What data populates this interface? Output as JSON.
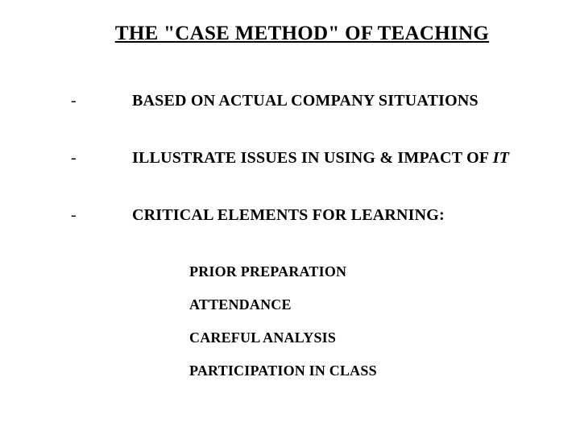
{
  "title": "THE \"CASE METHOD\" OF TEACHING",
  "bullets": [
    {
      "dash": "-",
      "text": "BASED ON ACTUAL COMPANY SITUATIONS"
    },
    {
      "dash": "-",
      "text_pre": "ILLUSTRATE ISSUES IN USING & IMPACT OF ",
      "text_italic": "IT"
    },
    {
      "dash": "-",
      "text": "CRITICAL ELEMENTS FOR LEARNING:"
    }
  ],
  "sub_items": [
    "PRIOR PREPARATION",
    "ATTENDANCE",
    "CAREFUL ANALYSIS",
    "PARTICIPATION IN CLASS"
  ],
  "colors": {
    "background": "#ffffff",
    "text": "#000000"
  },
  "typography": {
    "title_fontsize": 25,
    "bullet_fontsize": 20,
    "sub_fontsize": 18,
    "font_family": "Times New Roman"
  }
}
